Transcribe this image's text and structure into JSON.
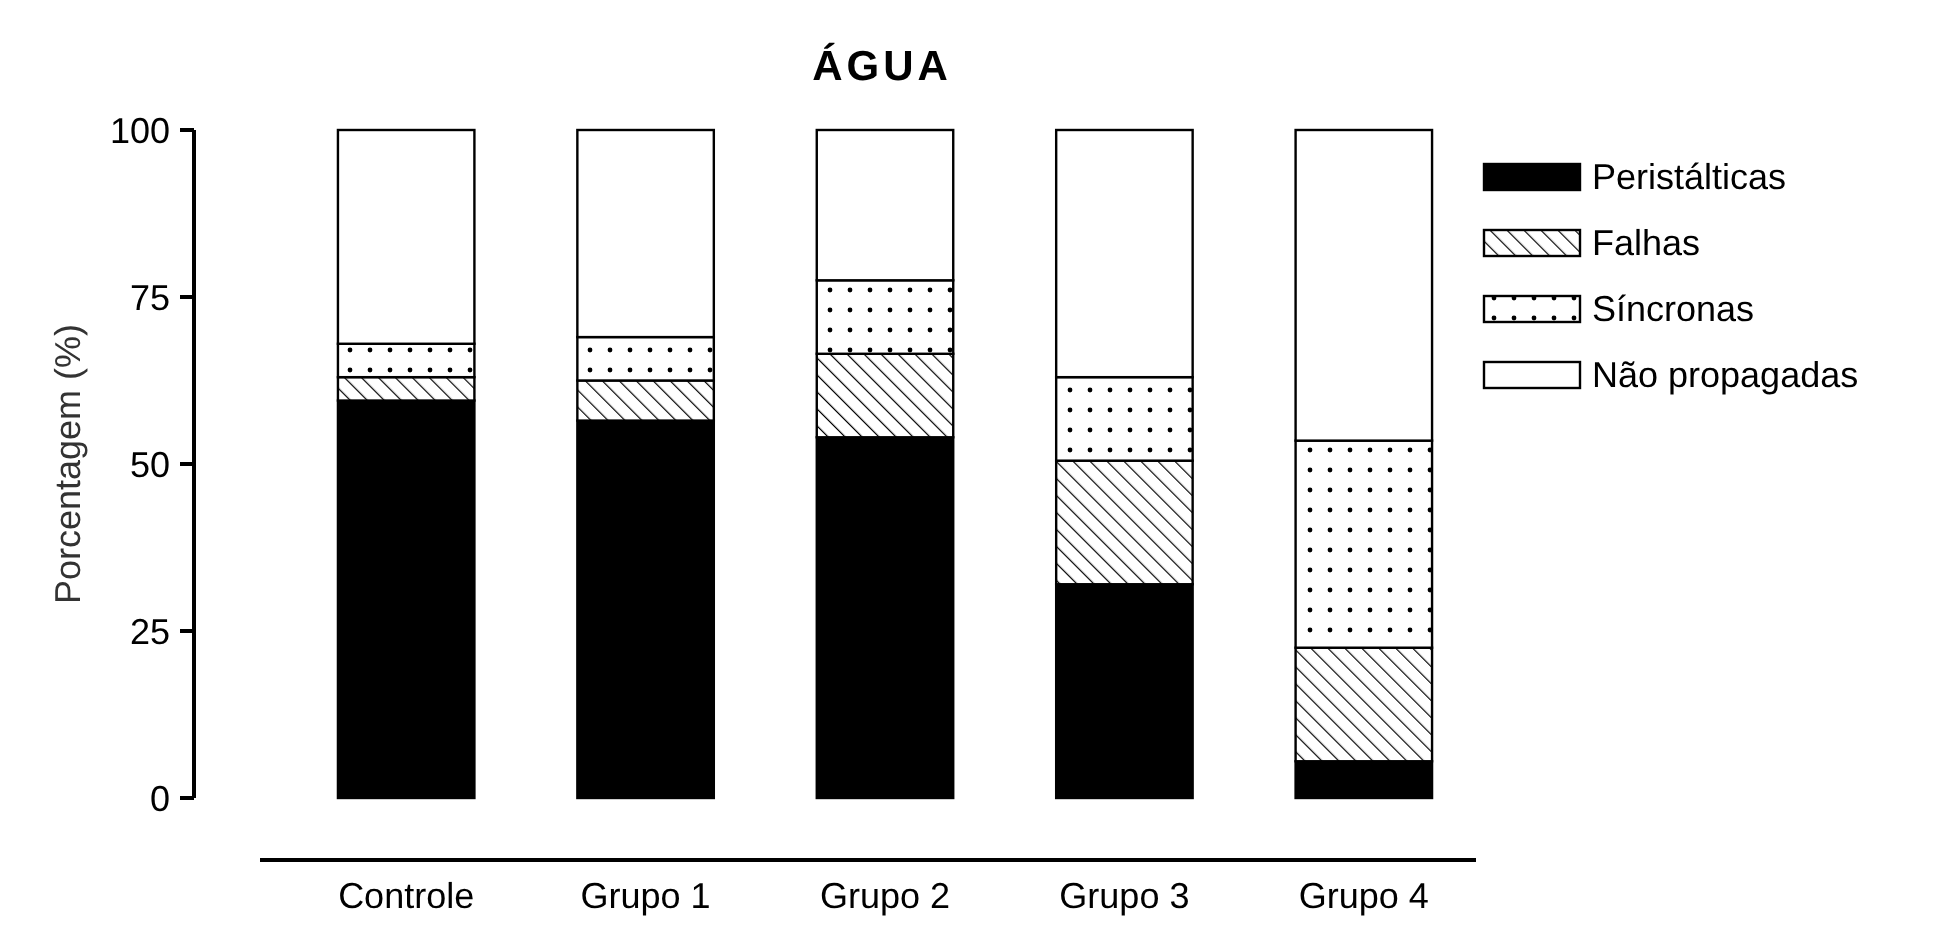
{
  "chart_data": {
    "type": "bar",
    "title": "ÁGUA",
    "ylabel": "Porcentagem (%)",
    "categories": [
      "Controle",
      "Grupo 1",
      "Grupo 2",
      "Grupo 3",
      "Grupo 4"
    ],
    "stacked": true,
    "series": [
      {
        "name": "Peristálticas",
        "color": "#000000",
        "values": [
          59.5,
          56.5,
          54,
          32,
          5.5
        ]
      },
      {
        "name": "Falhas",
        "color": "#000000",
        "values": [
          3.5,
          6,
          12.5,
          18.5,
          17
        ]
      },
      {
        "name": "Síncronas",
        "color": "#000000",
        "values": [
          5,
          6.5,
          11,
          12.5,
          31
        ]
      },
      {
        "name": "Não propagadas",
        "color": "#ffffff",
        "values": [
          32,
          31,
          22.5,
          37,
          46.5
        ]
      }
    ],
    "ylim": [
      0,
      100
    ],
    "yticks": [
      0,
      25,
      50,
      75,
      100
    ],
    "grid": false,
    "legend": "top right"
  }
}
